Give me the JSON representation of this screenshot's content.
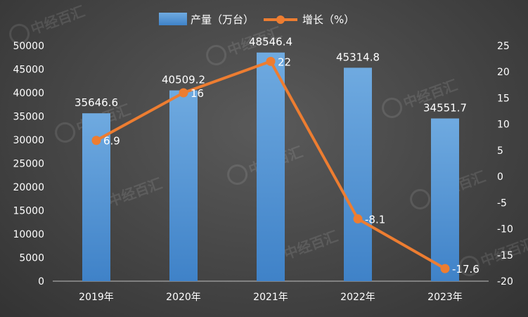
{
  "chart_data": {
    "type": "bar",
    "categories": [
      "2019年",
      "2020年",
      "2021年",
      "2022年",
      "2023年"
    ],
    "series": [
      {
        "name": "产量（万台）",
        "type": "bar",
        "axis": "left",
        "values": [
          35646.6,
          40509.2,
          48546.4,
          45314.8,
          34551.7
        ],
        "labels": [
          "35646.6",
          "40509.2",
          "48546.4",
          "45314.8",
          "34551.7"
        ],
        "color": "#5B9BD5"
      },
      {
        "name": "增长（%）",
        "type": "line",
        "axis": "right",
        "values": [
          6.9,
          16,
          22,
          -8.1,
          -17.6
        ],
        "labels": [
          "6.9",
          "16",
          "22",
          "-8.1",
          "-17.6"
        ],
        "color": "#ED7D31"
      }
    ],
    "y_left": {
      "min": 0,
      "max": 50000,
      "ticks": [
        "0",
        "5000",
        "10000",
        "15000",
        "20000",
        "25000",
        "30000",
        "35000",
        "40000",
        "45000",
        "50000"
      ]
    },
    "y_right": {
      "min": -20,
      "max": 25,
      "ticks": [
        "-20",
        "-15",
        "-10",
        "-5",
        "0",
        "5",
        "10",
        "15",
        "20",
        "25"
      ]
    },
    "grid": false,
    "legend_position": "top-center"
  },
  "watermark": {
    "text": "中经百汇"
  }
}
